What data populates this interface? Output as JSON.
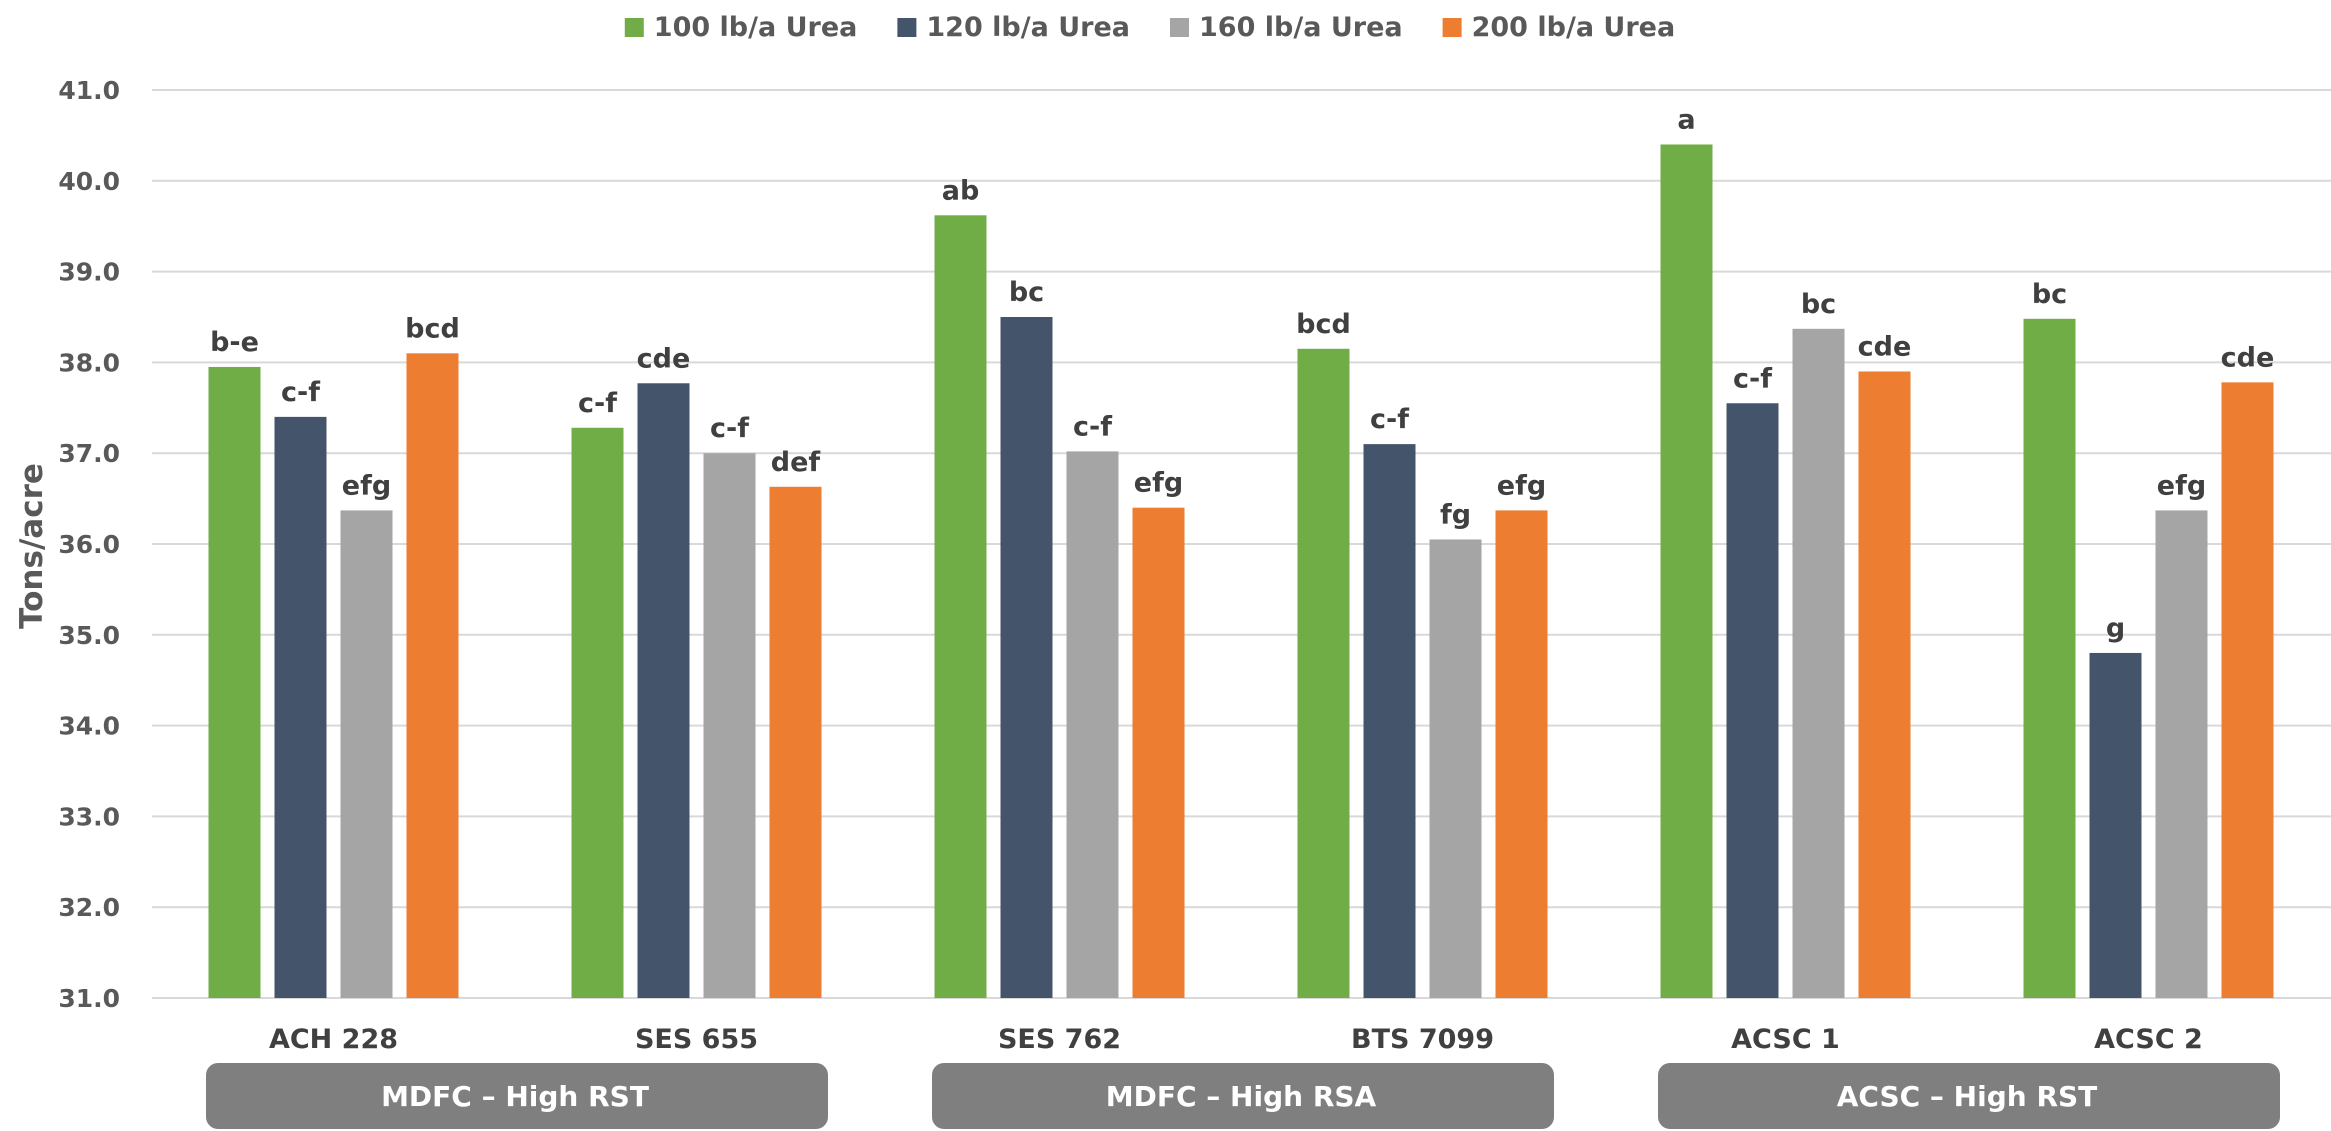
{
  "chart_data": {
    "type": "bar",
    "title": "",
    "xlabel": "",
    "ylabel": "Tons/acre",
    "ylim": [
      31.0,
      41.0
    ],
    "yticks": [
      "31.0",
      "32.0",
      "33.0",
      "34.0",
      "35.0",
      "36.0",
      "37.0",
      "38.0",
      "39.0",
      "40.0",
      "41.0"
    ],
    "grid": true,
    "legend_position": "top-center",
    "categories": [
      "ACH 228",
      "SES 655",
      "SES 762",
      "BTS 7099",
      "ACSC 1",
      "ACSC 2"
    ],
    "groups": [
      {
        "label": "MDFC – High RST",
        "categories": [
          "ACH 228",
          "SES 655"
        ]
      },
      {
        "label": "MDFC – High RSA",
        "categories": [
          "SES 762",
          "BTS 7099"
        ]
      },
      {
        "label": "ACSC – High RST",
        "categories": [
          "ACSC 1",
          "ACSC 2"
        ]
      }
    ],
    "series": [
      {
        "name": "100 lb/a Urea",
        "color": "#70ad47",
        "values": [
          37.95,
          37.28,
          39.62,
          38.15,
          40.4,
          38.48
        ],
        "labels": [
          "b-e",
          "c-f",
          "ab",
          "bcd",
          "a",
          "bc"
        ]
      },
      {
        "name": "120 lb/a Urea",
        "color": "#44546a",
        "values": [
          37.4,
          37.77,
          38.5,
          37.1,
          37.55,
          34.8
        ],
        "labels": [
          "c-f",
          "cde",
          "bc",
          "c-f",
          "c-f",
          "g"
        ]
      },
      {
        "name": "160 lb/a Urea",
        "color": "#a5a5a5",
        "values": [
          36.37,
          37.0,
          37.02,
          36.05,
          38.37,
          36.37
        ],
        "labels": [
          "efg",
          "c-f",
          "c-f",
          "fg",
          "bc",
          "efg"
        ]
      },
      {
        "name": "200 lb/a Urea",
        "color": "#ed7d31",
        "values": [
          38.1,
          36.63,
          36.4,
          36.37,
          37.9,
          37.78
        ],
        "labels": [
          "bcd",
          "def",
          "efg",
          "efg",
          "cde",
          "cde"
        ]
      }
    ]
  }
}
